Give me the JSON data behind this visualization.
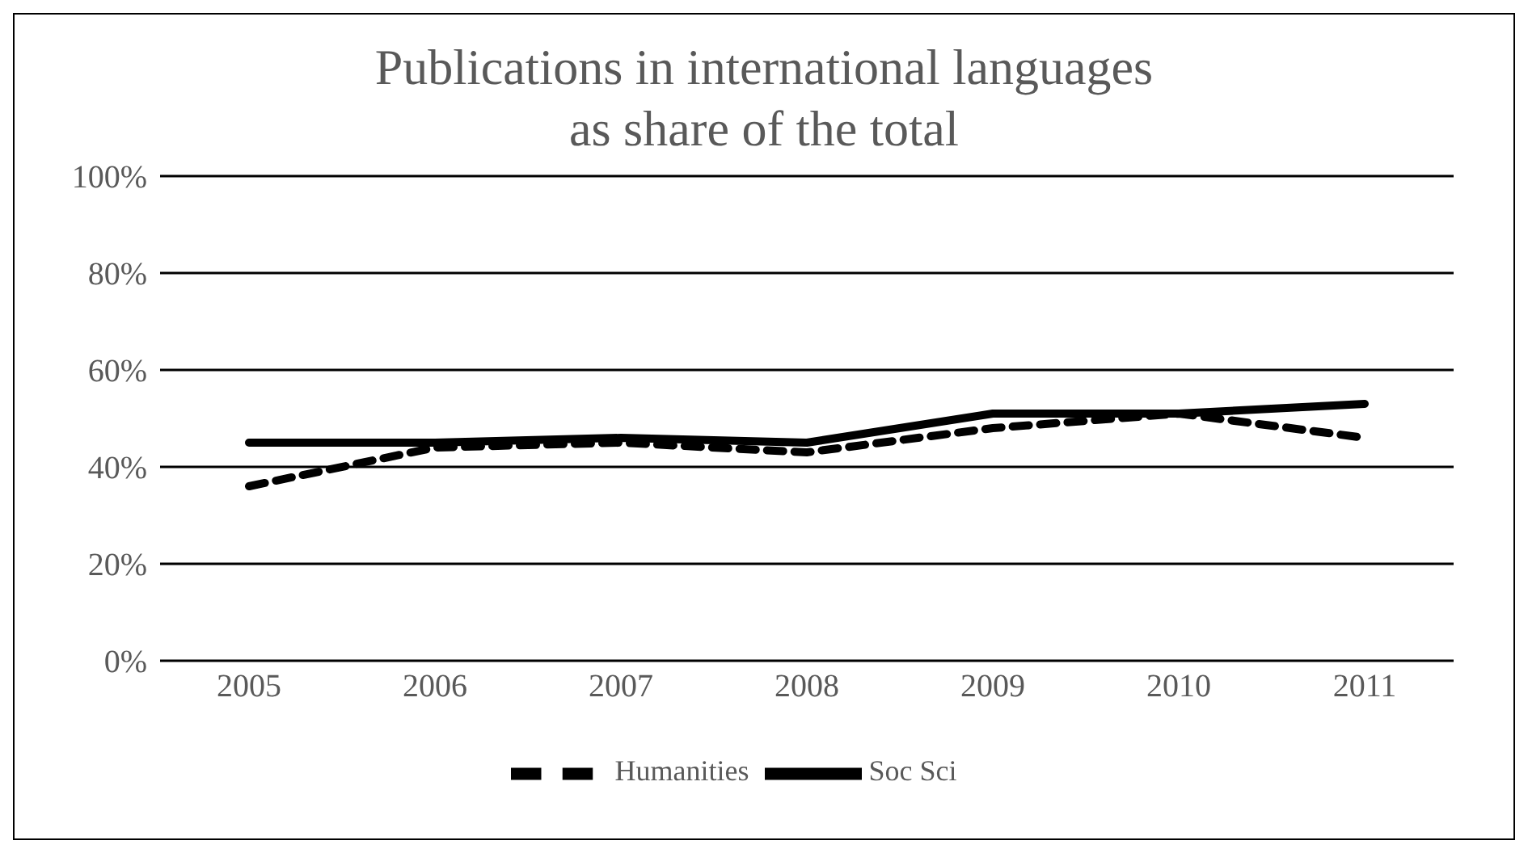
{
  "chart_data": {
    "type": "line",
    "title": "Publications in international languages\nas share of the total",
    "categories": [
      "2005",
      "2006",
      "2007",
      "2008",
      "2009",
      "2010",
      "2011"
    ],
    "series": [
      {
        "name": "Humanities",
        "color": "#000000",
        "line_style": "dashed",
        "values": [
          36,
          44,
          45,
          43,
          48,
          51,
          46
        ]
      },
      {
        "name": "Soc Sci",
        "color": "#000000",
        "line_style": "solid",
        "values": [
          45,
          45,
          46,
          45,
          51,
          51,
          53
        ]
      }
    ],
    "ylim": [
      0,
      100
    ],
    "yticks": [
      {
        "value": 0,
        "label": "0%"
      },
      {
        "value": 20,
        "label": "20%"
      },
      {
        "value": 40,
        "label": "40%"
      },
      {
        "value": 60,
        "label": "60%"
      },
      {
        "value": 80,
        "label": "80%"
      },
      {
        "value": 100,
        "label": "100%"
      }
    ],
    "grid": "y",
    "legend": "bottom",
    "marker": "none"
  }
}
